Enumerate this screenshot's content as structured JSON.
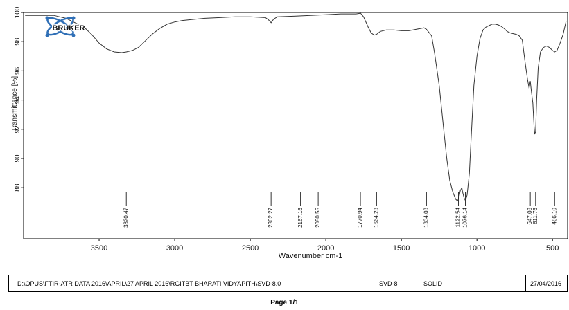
{
  "logo": {
    "text": "BRUKER",
    "color": "#2f6fb6"
  },
  "chart_data": {
    "type": "line",
    "xlabel": "Wavenumber cm-1",
    "ylabel": "Transmittance [%]",
    "x_axis": {
      "reversed": true,
      "min": 400,
      "max": 4000,
      "ticks": [
        3500,
        3000,
        2500,
        2000,
        1500,
        1000,
        500
      ]
    },
    "y_axis": {
      "min": 84.5,
      "max": 100,
      "ticks": [
        88,
        90,
        92,
        94,
        96,
        98,
        100
      ]
    },
    "grid": false,
    "series": [
      {
        "color": "#333333",
        "x": [
          3990,
          3800,
          3760,
          3720,
          3680,
          3600,
          3550,
          3500,
          3450,
          3400,
          3350,
          3320,
          3280,
          3240,
          3200,
          3150,
          3100,
          3050,
          3000,
          2950,
          2900,
          2800,
          2700,
          2600,
          2500,
          2400,
          2380,
          2362,
          2345,
          2320,
          2200,
          2100,
          2000,
          1900,
          1800,
          1770,
          1750,
          1720,
          1700,
          1680,
          1664,
          1640,
          1600,
          1550,
          1500,
          1450,
          1400,
          1350,
          1334,
          1300,
          1280,
          1250,
          1220,
          1200,
          1180,
          1160,
          1140,
          1130,
          1122,
          1110,
          1100,
          1095,
          1085,
          1076,
          1065,
          1050,
          1040,
          1030,
          1020,
          1000,
          980,
          960,
          940,
          920,
          900,
          880,
          860,
          840,
          820,
          800,
          780,
          760,
          740,
          720,
          700,
          680,
          665,
          655,
          647,
          640,
          630,
          622,
          618,
          612,
          605,
          595,
          580,
          560,
          540,
          520,
          500,
          486,
          470,
          450,
          430,
          410
        ],
        "y": [
          99.8,
          99.8,
          99.7,
          99.6,
          99.4,
          99.0,
          98.5,
          97.9,
          97.5,
          97.3,
          97.25,
          97.3,
          97.4,
          97.6,
          98.0,
          98.5,
          98.9,
          99.2,
          99.35,
          99.45,
          99.5,
          99.6,
          99.65,
          99.7,
          99.7,
          99.65,
          99.5,
          99.3,
          99.55,
          99.7,
          99.75,
          99.8,
          99.85,
          99.9,
          99.9,
          99.95,
          99.7,
          99.0,
          98.6,
          98.45,
          98.5,
          98.7,
          98.8,
          98.8,
          98.75,
          98.75,
          98.85,
          98.95,
          98.85,
          98.4,
          97.2,
          95.0,
          92.0,
          90.0,
          88.5,
          87.7,
          87.2,
          87.1,
          87.2,
          87.8,
          88.0,
          87.7,
          87.3,
          87.1,
          87.5,
          89.0,
          91.0,
          93.0,
          95.0,
          97.0,
          98.2,
          98.8,
          99.0,
          99.1,
          99.2,
          99.2,
          99.15,
          99.05,
          98.9,
          98.7,
          98.6,
          98.55,
          98.5,
          98.4,
          98.1,
          96.5,
          95.4,
          94.8,
          95.3,
          94.6,
          93.8,
          92.2,
          91.7,
          91.8,
          94.0,
          96.2,
          97.3,
          97.6,
          97.7,
          97.6,
          97.4,
          97.3,
          97.4,
          97.9,
          98.5,
          99.4
        ]
      }
    ],
    "peaks": [
      "3320.47",
      "2362.27",
      "2167.16",
      "2050.55",
      "1770.94",
      "1664.23",
      "1334.03",
      "1122.54",
      "1076.14",
      "647.08",
      "611.76",
      "486.10"
    ]
  },
  "footer": {
    "path": "D:\\OPUS\\FTIR-ATR DATA 2016\\APRIL\\27 APRIL 2016\\RGITBT BHARATI VIDYAPITH\\SVD-8.0",
    "sample": "SVD-8",
    "state": "SOLID",
    "date": "27/04/2016"
  },
  "page_label": "Page 1/1"
}
